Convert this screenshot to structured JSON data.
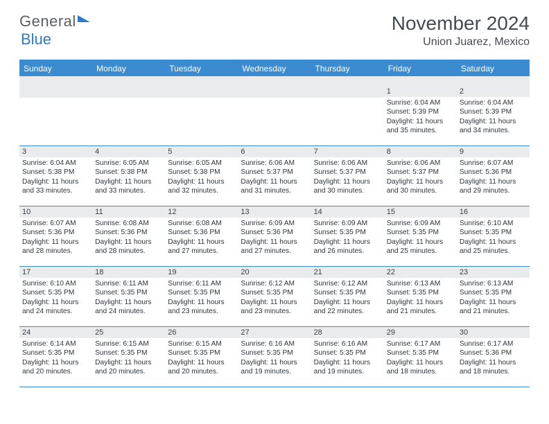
{
  "logo": {
    "text_general": "General",
    "text_blue": "Blue"
  },
  "title": "November 2024",
  "subtitle": "Union Juarez, Mexico",
  "colors": {
    "header_bg": "#3b8bd0",
    "header_text": "#ffffff",
    "daynum_bg": "#e9ebed",
    "border": "#3b8bd0",
    "body_text": "#2f343a",
    "title_text": "#444a52",
    "logo_gray": "#5a5f66",
    "logo_blue": "#2d7bc4"
  },
  "day_headers": [
    "Sunday",
    "Monday",
    "Tuesday",
    "Wednesday",
    "Thursday",
    "Friday",
    "Saturday"
  ],
  "weeks": [
    [
      {
        "n": "",
        "sr": "",
        "ss": "",
        "dl": ""
      },
      {
        "n": "",
        "sr": "",
        "ss": "",
        "dl": ""
      },
      {
        "n": "",
        "sr": "",
        "ss": "",
        "dl": ""
      },
      {
        "n": "",
        "sr": "",
        "ss": "",
        "dl": ""
      },
      {
        "n": "",
        "sr": "",
        "ss": "",
        "dl": ""
      },
      {
        "n": "1",
        "sr": "Sunrise: 6:04 AM",
        "ss": "Sunset: 5:39 PM",
        "dl": "Daylight: 11 hours and 35 minutes."
      },
      {
        "n": "2",
        "sr": "Sunrise: 6:04 AM",
        "ss": "Sunset: 5:39 PM",
        "dl": "Daylight: 11 hours and 34 minutes."
      }
    ],
    [
      {
        "n": "3",
        "sr": "Sunrise: 6:04 AM",
        "ss": "Sunset: 5:38 PM",
        "dl": "Daylight: 11 hours and 33 minutes."
      },
      {
        "n": "4",
        "sr": "Sunrise: 6:05 AM",
        "ss": "Sunset: 5:38 PM",
        "dl": "Daylight: 11 hours and 33 minutes."
      },
      {
        "n": "5",
        "sr": "Sunrise: 6:05 AM",
        "ss": "Sunset: 5:38 PM",
        "dl": "Daylight: 11 hours and 32 minutes."
      },
      {
        "n": "6",
        "sr": "Sunrise: 6:06 AM",
        "ss": "Sunset: 5:37 PM",
        "dl": "Daylight: 11 hours and 31 minutes."
      },
      {
        "n": "7",
        "sr": "Sunrise: 6:06 AM",
        "ss": "Sunset: 5:37 PM",
        "dl": "Daylight: 11 hours and 30 minutes."
      },
      {
        "n": "8",
        "sr": "Sunrise: 6:06 AM",
        "ss": "Sunset: 5:37 PM",
        "dl": "Daylight: 11 hours and 30 minutes."
      },
      {
        "n": "9",
        "sr": "Sunrise: 6:07 AM",
        "ss": "Sunset: 5:36 PM",
        "dl": "Daylight: 11 hours and 29 minutes."
      }
    ],
    [
      {
        "n": "10",
        "sr": "Sunrise: 6:07 AM",
        "ss": "Sunset: 5:36 PM",
        "dl": "Daylight: 11 hours and 28 minutes."
      },
      {
        "n": "11",
        "sr": "Sunrise: 6:08 AM",
        "ss": "Sunset: 5:36 PM",
        "dl": "Daylight: 11 hours and 28 minutes."
      },
      {
        "n": "12",
        "sr": "Sunrise: 6:08 AM",
        "ss": "Sunset: 5:36 PM",
        "dl": "Daylight: 11 hours and 27 minutes."
      },
      {
        "n": "13",
        "sr": "Sunrise: 6:09 AM",
        "ss": "Sunset: 5:36 PM",
        "dl": "Daylight: 11 hours and 27 minutes."
      },
      {
        "n": "14",
        "sr": "Sunrise: 6:09 AM",
        "ss": "Sunset: 5:35 PM",
        "dl": "Daylight: 11 hours and 26 minutes."
      },
      {
        "n": "15",
        "sr": "Sunrise: 6:09 AM",
        "ss": "Sunset: 5:35 PM",
        "dl": "Daylight: 11 hours and 25 minutes."
      },
      {
        "n": "16",
        "sr": "Sunrise: 6:10 AM",
        "ss": "Sunset: 5:35 PM",
        "dl": "Daylight: 11 hours and 25 minutes."
      }
    ],
    [
      {
        "n": "17",
        "sr": "Sunrise: 6:10 AM",
        "ss": "Sunset: 5:35 PM",
        "dl": "Daylight: 11 hours and 24 minutes."
      },
      {
        "n": "18",
        "sr": "Sunrise: 6:11 AM",
        "ss": "Sunset: 5:35 PM",
        "dl": "Daylight: 11 hours and 24 minutes."
      },
      {
        "n": "19",
        "sr": "Sunrise: 6:11 AM",
        "ss": "Sunset: 5:35 PM",
        "dl": "Daylight: 11 hours and 23 minutes."
      },
      {
        "n": "20",
        "sr": "Sunrise: 6:12 AM",
        "ss": "Sunset: 5:35 PM",
        "dl": "Daylight: 11 hours and 23 minutes."
      },
      {
        "n": "21",
        "sr": "Sunrise: 6:12 AM",
        "ss": "Sunset: 5:35 PM",
        "dl": "Daylight: 11 hours and 22 minutes."
      },
      {
        "n": "22",
        "sr": "Sunrise: 6:13 AM",
        "ss": "Sunset: 5:35 PM",
        "dl": "Daylight: 11 hours and 21 minutes."
      },
      {
        "n": "23",
        "sr": "Sunrise: 6:13 AM",
        "ss": "Sunset: 5:35 PM",
        "dl": "Daylight: 11 hours and 21 minutes."
      }
    ],
    [
      {
        "n": "24",
        "sr": "Sunrise: 6:14 AM",
        "ss": "Sunset: 5:35 PM",
        "dl": "Daylight: 11 hours and 20 minutes."
      },
      {
        "n": "25",
        "sr": "Sunrise: 6:15 AM",
        "ss": "Sunset: 5:35 PM",
        "dl": "Daylight: 11 hours and 20 minutes."
      },
      {
        "n": "26",
        "sr": "Sunrise: 6:15 AM",
        "ss": "Sunset: 5:35 PM",
        "dl": "Daylight: 11 hours and 20 minutes."
      },
      {
        "n": "27",
        "sr": "Sunrise: 6:16 AM",
        "ss": "Sunset: 5:35 PM",
        "dl": "Daylight: 11 hours and 19 minutes."
      },
      {
        "n": "28",
        "sr": "Sunrise: 6:16 AM",
        "ss": "Sunset: 5:35 PM",
        "dl": "Daylight: 11 hours and 19 minutes."
      },
      {
        "n": "29",
        "sr": "Sunrise: 6:17 AM",
        "ss": "Sunset: 5:35 PM",
        "dl": "Daylight: 11 hours and 18 minutes."
      },
      {
        "n": "30",
        "sr": "Sunrise: 6:17 AM",
        "ss": "Sunset: 5:36 PM",
        "dl": "Daylight: 11 hours and 18 minutes."
      }
    ]
  ]
}
